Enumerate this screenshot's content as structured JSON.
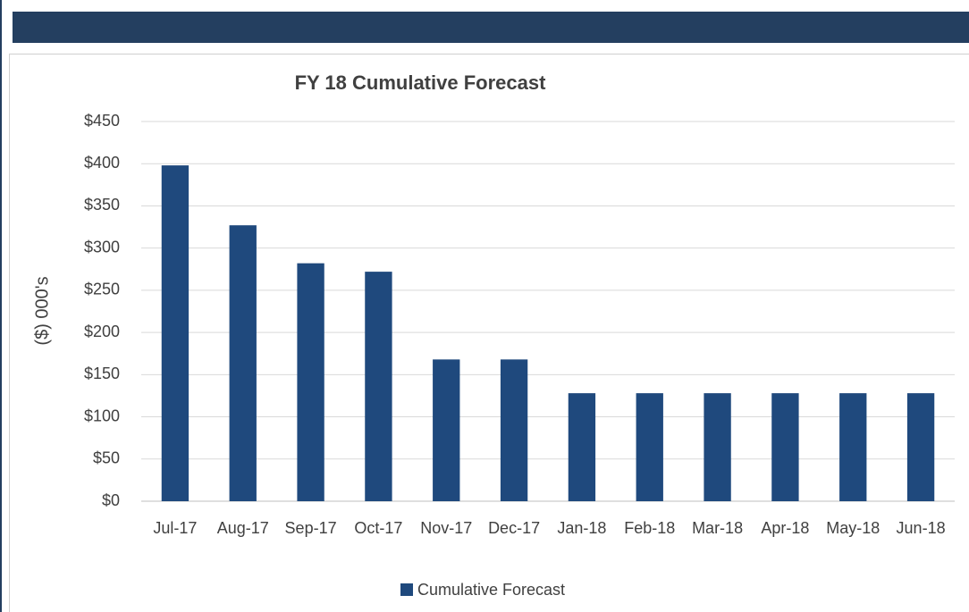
{
  "chart_data": {
    "type": "bar",
    "title": "FY 18 Cumulative Forecast",
    "y_label": "($) 000's",
    "categories": [
      "Jul-17",
      "Aug-17",
      "Sep-17",
      "Oct-17",
      "Nov-17",
      "Dec-17",
      "Jan-18",
      "Feb-18",
      "Mar-18",
      "Apr-18",
      "May-18",
      "Jun-18"
    ],
    "series": [
      {
        "name": "Cumulative Forecast",
        "color": "#1f497d",
        "values": [
          398,
          327,
          282,
          272,
          168,
          168,
          128,
          128,
          128,
          128,
          128,
          128
        ]
      }
    ],
    "ylim": [
      0,
      450
    ],
    "yticks": [
      {
        "value": 0,
        "label": "$0"
      },
      {
        "value": 50,
        "label": "$50"
      },
      {
        "value": 100,
        "label": "$100"
      },
      {
        "value": 150,
        "label": "$150"
      },
      {
        "value": 200,
        "label": "$200"
      },
      {
        "value": 250,
        "label": "$250"
      },
      {
        "value": 300,
        "label": "$300"
      },
      {
        "value": 350,
        "label": "$350"
      },
      {
        "value": 400,
        "label": "$400"
      },
      {
        "value": 450,
        "label": "$450"
      }
    ],
    "grid": true,
    "legend": "bottom"
  }
}
